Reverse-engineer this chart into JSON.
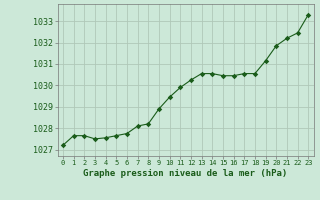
{
  "x": [
    0,
    1,
    2,
    3,
    4,
    5,
    6,
    7,
    8,
    9,
    10,
    11,
    12,
    13,
    14,
    15,
    16,
    17,
    18,
    19,
    20,
    21,
    22,
    23
  ],
  "y": [
    1027.2,
    1027.65,
    1027.65,
    1027.5,
    1027.55,
    1027.65,
    1027.75,
    1028.1,
    1028.2,
    1028.9,
    1029.45,
    1029.9,
    1030.25,
    1030.55,
    1030.55,
    1030.45,
    1030.45,
    1030.55,
    1030.55,
    1031.15,
    1031.85,
    1032.2,
    1032.45,
    1033.3
  ],
  "line_color": "#1a5c1a",
  "marker": "D",
  "marker_size": 2.8,
  "bg_color": "#cce8d8",
  "grid_color": "#b0c8b8",
  "ylabel_ticks": [
    1027,
    1028,
    1029,
    1030,
    1031,
    1032,
    1033
  ],
  "xlabel_label": "Graphe pression niveau de la mer (hPa)",
  "xlabel_color": "#1a5c1a",
  "ylim": [
    1026.7,
    1033.8
  ],
  "xlim": [
    -0.5,
    23.5
  ],
  "ytick_fontsize": 6.0,
  "xtick_fontsize": 5.0,
  "xlabel_fontsize": 6.5
}
